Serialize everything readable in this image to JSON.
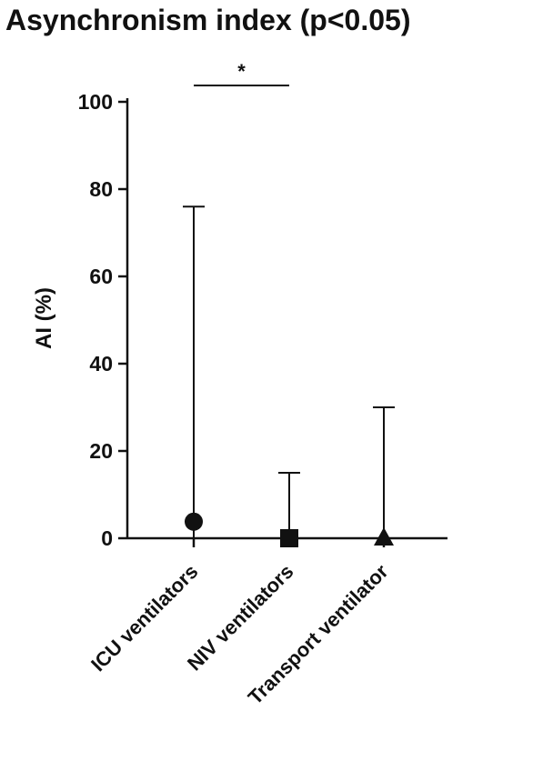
{
  "chart_data": {
    "type": "scatter",
    "title": "Asynchronism index (p<0.05)",
    "xlabel": "",
    "ylabel": "AI (%)",
    "ylim": [
      0,
      100
    ],
    "yticks": [
      0,
      20,
      40,
      60,
      80,
      100
    ],
    "categories": [
      "ICU ventilators",
      "NIV ventilators",
      "Transport ventilator"
    ],
    "points": [
      {
        "category": "ICU ventilators",
        "median": 3.8,
        "low": 0,
        "high": 76,
        "marker": "circle"
      },
      {
        "category": "NIV ventilators",
        "median": 0,
        "low": 0,
        "high": 15,
        "marker": "square"
      },
      {
        "category": "Transport ventilator",
        "median": 0,
        "low": 0,
        "high": 30,
        "marker": "triangle"
      }
    ],
    "significance": [
      {
        "from": "ICU ventilators",
        "to": "NIV ventilators",
        "label": "*"
      }
    ],
    "grid": false,
    "legend": "none"
  }
}
